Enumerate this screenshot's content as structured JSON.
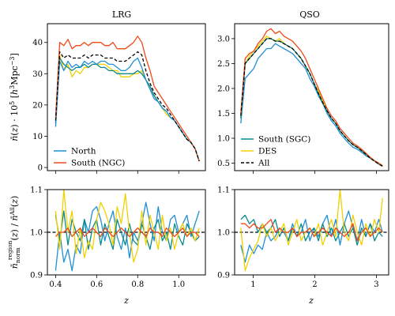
{
  "colors": {
    "north": "#1f8fd6",
    "south_ngc": "#f04a1a",
    "south_sgc": "#0a8a8a",
    "des": "#f2d000",
    "all": "#000000"
  },
  "chart_data": [
    {
      "id": "lrg-top",
      "type": "line",
      "title": "LRG",
      "ylabel": "n̄(z) · 10⁵ [h³Mpc⁻³]",
      "xlim": [
        0.36,
        1.13
      ],
      "ylim": [
        -1,
        46
      ],
      "xticks": [
        0.4,
        0.6,
        0.8,
        1.0
      ],
      "xtick_labels": [
        "",
        "",
        "",
        ""
      ],
      "yticks": [
        0,
        10,
        20,
        30,
        40
      ],
      "ytick_labels": [
        "0",
        "10",
        "20",
        "30",
        "40"
      ],
      "legend_position": "lower-left",
      "x": [
        0.4,
        0.42,
        0.44,
        0.46,
        0.48,
        0.5,
        0.52,
        0.54,
        0.56,
        0.58,
        0.6,
        0.62,
        0.64,
        0.66,
        0.68,
        0.7,
        0.72,
        0.74,
        0.76,
        0.78,
        0.8,
        0.82,
        0.84,
        0.86,
        0.88,
        0.9,
        0.92,
        0.94,
        0.96,
        0.98,
        1.0,
        1.02,
        1.04,
        1.06,
        1.08,
        1.1
      ],
      "series": [
        {
          "name": "North",
          "color_key": "north",
          "dash": "",
          "in_legend": true,
          "values": [
            13,
            34,
            31,
            34,
            32,
            33,
            32,
            34,
            33,
            34,
            33,
            34,
            34,
            33,
            33,
            32,
            31,
            31,
            32,
            34,
            35,
            32,
            28,
            25,
            22,
            21,
            19,
            18,
            16,
            15,
            13,
            11,
            9,
            8,
            6,
            2
          ]
        },
        {
          "name": "South (NGC)",
          "color_key": "south_ngc",
          "dash": "",
          "in_legend": true,
          "values": [
            16,
            40,
            39,
            41,
            38,
            39,
            39,
            40,
            39,
            40,
            40,
            40,
            39,
            39,
            40,
            38,
            38,
            38,
            39,
            40,
            42,
            40,
            35,
            31,
            26,
            24,
            22,
            20,
            18,
            16,
            14,
            12,
            10,
            8,
            6,
            2
          ]
        },
        {
          "name": "All",
          "color_key": "all",
          "dash": "4,2.5",
          "in_legend": false,
          "values": [
            15,
            37,
            35,
            36,
            35,
            35,
            35,
            36,
            35,
            36,
            36,
            36,
            35,
            35,
            35,
            34,
            34,
            34,
            35,
            36,
            37,
            36,
            31,
            27,
            24,
            22,
            20,
            19,
            17,
            15,
            13,
            11,
            9,
            8,
            6,
            2
          ]
        },
        {
          "name": "South (SGC)",
          "color_key": "south_sgc",
          "dash": "",
          "in_legend": false,
          "values": [
            14,
            35,
            33,
            32,
            31,
            32,
            32,
            33,
            32,
            33,
            33,
            32,
            32,
            31,
            31,
            30,
            30,
            30,
            30,
            30,
            31,
            30,
            28,
            26,
            23,
            21,
            19,
            18,
            16,
            15,
            13,
            11,
            9,
            8,
            6,
            2
          ]
        },
        {
          "name": "DES",
          "color_key": "des",
          "dash": "",
          "in_legend": false,
          "values": [
            14,
            36,
            31,
            33,
            29,
            31,
            30,
            32,
            32,
            33,
            33,
            33,
            33,
            32,
            31,
            31,
            29,
            29,
            29,
            30,
            30,
            31,
            28,
            25,
            23,
            21,
            19,
            17,
            16,
            15,
            13,
            11,
            9,
            8,
            6,
            2
          ]
        }
      ]
    },
    {
      "id": "qso-top",
      "type": "line",
      "title": "QSO",
      "ylabel": "",
      "xlim": [
        0.7,
        3.2
      ],
      "ylim": [
        0.35,
        3.3
      ],
      "xticks": [
        1,
        2,
        3
      ],
      "xtick_labels": [
        "",
        "",
        ""
      ],
      "yticks": [
        0.5,
        1.0,
        1.5,
        2.0,
        2.5,
        3.0
      ],
      "ytick_labels": [
        "0.5",
        "1.0",
        "1.5",
        "2.0",
        "2.5",
        "3.0"
      ],
      "legend_position": "lower-left",
      "x": [
        0.8,
        0.87,
        0.94,
        1.01,
        1.08,
        1.15,
        1.22,
        1.29,
        1.36,
        1.43,
        1.5,
        1.57,
        1.64,
        1.71,
        1.78,
        1.85,
        1.92,
        1.99,
        2.06,
        2.13,
        2.2,
        2.27,
        2.34,
        2.41,
        2.48,
        2.55,
        2.62,
        2.69,
        2.76,
        2.83,
        2.9,
        2.97,
        3.04,
        3.1
      ],
      "series": [
        {
          "name": "North",
          "color_key": "north",
          "dash": "",
          "in_legend": false,
          "values": [
            1.3,
            2.2,
            2.3,
            2.4,
            2.6,
            2.7,
            2.8,
            2.8,
            2.9,
            2.85,
            2.8,
            2.75,
            2.7,
            2.6,
            2.5,
            2.4,
            2.2,
            2.05,
            1.85,
            1.7,
            1.5,
            1.35,
            1.25,
            1.1,
            1.0,
            0.9,
            0.82,
            0.78,
            0.72,
            0.65,
            0.6,
            0.55,
            0.5,
            0.45
          ]
        },
        {
          "name": "South (NGC)",
          "color_key": "south_ngc",
          "dash": "",
          "in_legend": false,
          "values": [
            1.5,
            2.6,
            2.7,
            2.75,
            2.9,
            3.0,
            3.15,
            3.2,
            3.1,
            3.15,
            3.05,
            3.0,
            2.95,
            2.85,
            2.75,
            2.6,
            2.4,
            2.2,
            2.0,
            1.8,
            1.6,
            1.45,
            1.35,
            1.2,
            1.1,
            1.0,
            0.9,
            0.85,
            0.78,
            0.7,
            0.62,
            0.55,
            0.5,
            0.45
          ]
        },
        {
          "name": "South (SGC)",
          "color_key": "south_sgc",
          "dash": "",
          "in_legend": true,
          "values": [
            1.4,
            2.5,
            2.6,
            2.7,
            2.8,
            2.9,
            3.0,
            3.0,
            2.95,
            2.95,
            2.9,
            2.85,
            2.8,
            2.7,
            2.6,
            2.45,
            2.3,
            2.1,
            1.9,
            1.7,
            1.55,
            1.4,
            1.3,
            1.15,
            1.05,
            0.95,
            0.87,
            0.82,
            0.75,
            0.68,
            0.6,
            0.54,
            0.48,
            0.44
          ]
        },
        {
          "name": "DES",
          "color_key": "des",
          "dash": "",
          "in_legend": true,
          "values": [
            1.4,
            2.5,
            2.65,
            2.75,
            2.85,
            2.95,
            3.05,
            3.0,
            2.95,
            3.0,
            2.9,
            2.85,
            2.8,
            2.7,
            2.6,
            2.45,
            2.3,
            2.1,
            1.95,
            1.75,
            1.55,
            1.4,
            1.3,
            1.15,
            1.05,
            0.95,
            0.87,
            0.82,
            0.75,
            0.68,
            0.6,
            0.54,
            0.48,
            0.44
          ]
        },
        {
          "name": "All",
          "color_key": "all",
          "dash": "4,2.5",
          "in_legend": true,
          "values": [
            1.45,
            2.5,
            2.6,
            2.7,
            2.8,
            2.9,
            3.0,
            3.0,
            2.95,
            2.95,
            2.9,
            2.85,
            2.8,
            2.7,
            2.6,
            2.45,
            2.3,
            2.1,
            1.9,
            1.72,
            1.55,
            1.4,
            1.3,
            1.15,
            1.05,
            0.95,
            0.87,
            0.82,
            0.75,
            0.68,
            0.6,
            0.54,
            0.48,
            0.44
          ]
        }
      ]
    },
    {
      "id": "lrg-bottom",
      "type": "line",
      "title": "",
      "ylabel": "n̄ norm region(z) / n̄ All(z)",
      "xlabel": "z",
      "xlim": [
        0.36,
        1.13
      ],
      "ylim": [
        0.9,
        1.1
      ],
      "xticks": [
        0.4,
        0.6,
        0.8,
        1.0
      ],
      "xtick_labels": [
        "0.4",
        "0.6",
        "0.8",
        "1.0"
      ],
      "yticks": [
        0.9,
        1.0,
        1.1
      ],
      "ytick_labels": [
        "0.9",
        "1.0",
        "1.1"
      ],
      "reference_line": 1.0,
      "x": [
        0.4,
        0.42,
        0.44,
        0.46,
        0.48,
        0.5,
        0.52,
        0.54,
        0.56,
        0.58,
        0.6,
        0.62,
        0.64,
        0.66,
        0.68,
        0.7,
        0.72,
        0.74,
        0.76,
        0.78,
        0.8,
        0.82,
        0.84,
        0.86,
        0.88,
        0.9,
        0.92,
        0.94,
        0.96,
        0.98,
        1.0,
        1.02,
        1.04,
        1.06,
        1.08,
        1.1
      ],
      "series": [
        {
          "name": "North",
          "color_key": "north",
          "dash": "",
          "values": [
            0.91,
            1.0,
            0.93,
            0.96,
            0.91,
            0.97,
            0.95,
            1.03,
            1.0,
            1.05,
            1.06,
            1.03,
            0.98,
            1.02,
            1.05,
            0.99,
            0.96,
            1.01,
            0.94,
            1.0,
            0.98,
            1.02,
            1.07,
            1.02,
            0.98,
            1.06,
            1.0,
            0.98,
            1.03,
            1.04,
            1.0,
            1.02,
            1.04,
            0.99,
            1.02,
            1.05
          ]
        },
        {
          "name": "South (NGC)",
          "color_key": "south_ngc",
          "dash": "",
          "values": [
            0.99,
            1.0,
            1.0,
            1.01,
            0.99,
            1.0,
            1.01,
            0.99,
            1.0,
            1.01,
            1.0,
            0.99,
            1.01,
            1.0,
            0.99,
            1.0,
            1.01,
            1.0,
            0.99,
            1.0,
            1.01,
            1.0,
            0.99,
            1.01,
            1.0,
            1.0,
            0.99,
            1.01,
            1.0,
            0.99,
            1.0,
            1.01,
            0.99,
            1.0,
            1.0,
            0.99
          ]
        },
        {
          "name": "South (SGC)",
          "color_key": "south_sgc",
          "dash": "",
          "values": [
            1.04,
            0.98,
            1.05,
            0.97,
            1.03,
            1.0,
            0.98,
            1.03,
            0.96,
            1.01,
            1.03,
            0.97,
            1.02,
            0.99,
            0.96,
            1.03,
            1.0,
            0.97,
            1.02,
            0.98,
            0.97,
            1.02,
            0.99,
            0.96,
            1.01,
            1.03,
            0.98,
            1.0,
            0.96,
            1.02,
            0.99,
            0.97,
            1.02,
            1.0,
            0.98,
            0.99
          ]
        },
        {
          "name": "DES",
          "color_key": "des",
          "dash": "",
          "values": [
            1.05,
            0.96,
            1.1,
            1.0,
            1.05,
            0.95,
            1.01,
            0.94,
            0.98,
            0.96,
            1.03,
            1.07,
            1.05,
            1.02,
            0.97,
            1.06,
            1.02,
            1.09,
            1.0,
            0.93,
            0.96,
            1.05,
            0.97,
            1.04,
            1.0,
            0.96,
            1.04,
            0.98,
            1.01,
            0.96,
            1.0,
            1.02,
            0.99,
            1.01,
            0.98,
            1.01
          ]
        },
        {
          "name": "All",
          "color_key": "all",
          "dash": "",
          "values": [
            1.0,
            1.0,
            1.0,
            1.0,
            1.0,
            1.0,
            1.0,
            1.0,
            1.0,
            1.0,
            1.0,
            1.0,
            1.0,
            1.0,
            1.0,
            1.0,
            1.0,
            1.0,
            1.0,
            1.0,
            1.0,
            1.0,
            1.0,
            1.0,
            1.0,
            1.0,
            1.0,
            1.0,
            1.0,
            1.0,
            1.0,
            1.0,
            1.0,
            1.0,
            1.0,
            1.0
          ]
        }
      ]
    },
    {
      "id": "qso-bottom",
      "type": "line",
      "title": "",
      "ylabel": "",
      "xlabel": "z",
      "xlim": [
        0.7,
        3.2
      ],
      "ylim": [
        0.9,
        1.1
      ],
      "xticks": [
        1,
        2,
        3
      ],
      "xtick_labels": [
        "1",
        "2",
        "3"
      ],
      "yticks": [
        0.9,
        1.0,
        1.1
      ],
      "ytick_labels": [
        "0.9",
        "1.0",
        "1.1"
      ],
      "reference_line": 1.0,
      "x": [
        0.8,
        0.87,
        0.94,
        1.01,
        1.08,
        1.15,
        1.22,
        1.29,
        1.36,
        1.43,
        1.5,
        1.57,
        1.64,
        1.71,
        1.78,
        1.85,
        1.92,
        1.99,
        2.06,
        2.13,
        2.2,
        2.27,
        2.34,
        2.41,
        2.48,
        2.55,
        2.62,
        2.69,
        2.76,
        2.83,
        2.9,
        2.97,
        3.04,
        3.1
      ],
      "series": [
        {
          "name": "North",
          "color_key": "north",
          "dash": "",
          "values": [
            0.97,
            0.93,
            0.97,
            0.95,
            0.97,
            0.96,
            1.0,
            0.98,
            0.99,
            1.01,
            1.0,
            0.98,
            1.02,
            0.99,
            1.0,
            1.03,
            0.98,
            1.01,
            0.99,
            1.02,
            1.04,
            0.99,
            1.03,
            0.97,
            1.02,
            1.05,
            1.01,
            0.98,
            1.03,
            0.99,
            1.02,
            1.0,
            1.03,
            1.0
          ]
        },
        {
          "name": "South (NGC)",
          "color_key": "south_ngc",
          "dash": "",
          "values": [
            1.02,
            1.02,
            1.01,
            1.02,
            1.01,
            1.01,
            1.02,
            1.03,
            1.0,
            1.01,
            1.0,
            1.0,
            1.01,
            0.99,
            1.0,
            1.0,
            1.01,
            0.99,
            1.0,
            1.01,
            1.0,
            0.99,
            1.01,
            1.0,
            0.99,
            1.0,
            1.02,
            0.98,
            1.0,
            1.01,
            0.99,
            1.0,
            1.01,
            1.0
          ]
        },
        {
          "name": "South (SGC)",
          "color_key": "south_sgc",
          "dash": "",
          "values": [
            1.03,
            1.04,
            1.02,
            1.03,
            1.0,
            1.02,
            1.0,
            1.01,
            1.03,
            0.99,
            1.01,
            0.98,
            1.01,
            0.99,
            1.02,
            0.98,
            1.0,
            1.01,
            0.98,
            1.02,
            0.99,
            1.01,
            0.98,
            1.0,
            1.02,
            0.99,
            1.01,
            0.97,
            1.01,
            0.99,
            1.02,
            0.98,
            1.0,
            0.99
          ]
        },
        {
          "name": "DES",
          "color_key": "des",
          "dash": "",
          "values": [
            1.01,
            0.91,
            0.94,
            0.96,
            0.98,
            1.02,
            0.99,
            1.01,
            0.98,
            1.0,
            1.02,
            0.97,
            1.0,
            1.03,
            0.98,
            1.0,
            1.01,
            0.99,
            1.02,
            0.97,
            1.0,
            1.03,
            0.99,
            1.1,
            1.0,
            0.98,
            1.04,
            1.0,
            0.97,
            1.02,
            0.99,
            1.03,
            1.0,
            1.08
          ]
        },
        {
          "name": "All",
          "color_key": "all",
          "dash": "",
          "values": [
            1.0,
            1.0,
            1.0,
            1.0,
            1.0,
            1.0,
            1.0,
            1.0,
            1.0,
            1.0,
            1.0,
            1.0,
            1.0,
            1.0,
            1.0,
            1.0,
            1.0,
            1.0,
            1.0,
            1.0,
            1.0,
            1.0,
            1.0,
            1.0,
            1.0,
            1.0,
            1.0,
            1.0,
            1.0,
            1.0,
            1.0,
            1.0,
            1.0,
            1.0
          ]
        }
      ]
    }
  ]
}
